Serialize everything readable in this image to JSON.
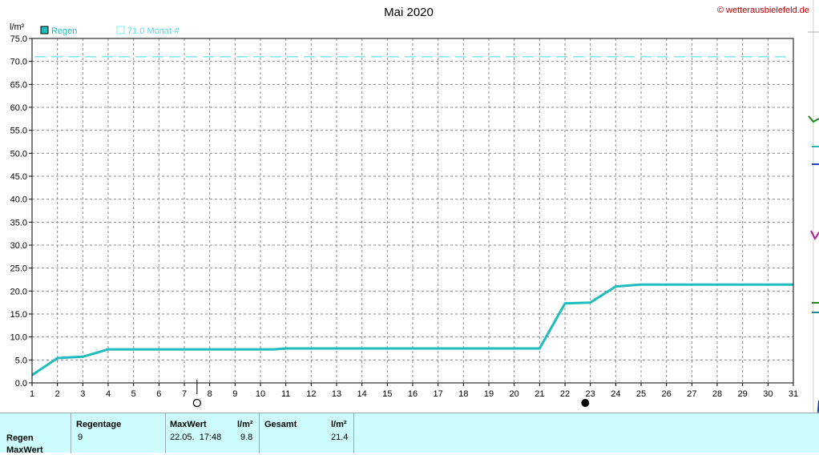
{
  "title": "Mai 2020",
  "copyright": "© wetterausbielefeld.de",
  "legend": {
    "series_label": "Regen",
    "reference_label": "71.0 Monat-#"
  },
  "colors": {
    "series": "#1ebcbc",
    "reference": "#7fe8f0",
    "grid": "#8a8a8a",
    "stats_background": "#ccfcfc"
  },
  "moon_phases": [
    {
      "day": 7.5,
      "phase": "first-quarter",
      "icon": "moon-open-circle-icon"
    },
    {
      "day": 22.8,
      "phase": "full-dark",
      "icon": "moon-filled-circle-icon"
    }
  ],
  "chart_data": {
    "type": "line",
    "ylabel": "l/m²",
    "ylim": [
      0,
      75
    ],
    "yticks": [
      "0.0",
      "5.0",
      "10.0",
      "15.0",
      "20.0",
      "25.0",
      "30.0",
      "35.0",
      "40.0",
      "45.0",
      "50.0",
      "55.0",
      "60.0",
      "65.0",
      "70.0",
      "75.0"
    ],
    "xlim": [
      1,
      31
    ],
    "xticks": [
      "1",
      "2",
      "3",
      "4",
      "5",
      "6",
      "7",
      "8",
      "9",
      "10",
      "11",
      "12",
      "13",
      "14",
      "15",
      "16",
      "17",
      "18",
      "19",
      "20",
      "21",
      "22",
      "23",
      "24",
      "25",
      "26",
      "27",
      "28",
      "29",
      "30",
      "31"
    ],
    "grid": true,
    "legend": "top-left",
    "series": [
      {
        "name": "Regen",
        "x": [
          1,
          2,
          3,
          4,
          10.5,
          11,
          21,
          22,
          23,
          24,
          25,
          31
        ],
        "y": [
          1.7,
          5.4,
          5.7,
          7.3,
          7.3,
          7.5,
          7.5,
          17.3,
          17.5,
          21.0,
          21.4,
          21.4
        ]
      }
    ],
    "reference_lines": [
      {
        "name": "71.0 Monat-#",
        "y": 71.0
      }
    ]
  },
  "stats": {
    "headers": {
      "regentage": "Regentage",
      "maxwert": "MaxWert",
      "maxwert_unit": "l/m²",
      "gesamt": "Gesamt",
      "gesamt_unit": "l/m²"
    },
    "rows": [
      {
        "label": "Regen",
        "regentage": "9",
        "maxwert_date": "22.05.  17:48",
        "maxwert_value": "9.8",
        "gesamt": "21.4"
      },
      {
        "label": "MaxWert"
      }
    ]
  }
}
